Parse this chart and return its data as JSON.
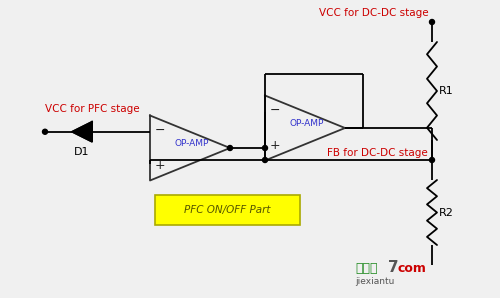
{
  "bg_color": "#f0f0f0",
  "vcc_pfc_label": "VCC for PFC stage",
  "vcc_dc_label": "VCC for DC-DC stage",
  "fb_label": "FB for DC-DC stage",
  "d1_label": "D1",
  "r1_label": "R1",
  "r2_label": "R2",
  "opamp1_label": "OP-AMP",
  "opamp2_label": "OP-AMP",
  "pfc_box_label": "PFC ON/OFF Part",
  "label_color_red": "#cc0000",
  "label_color_blue": "#3333cc",
  "line_color": "#000000",
  "pfc_box_fill": "#ffff00",
  "pfc_box_edge": "#aaaa00",
  "wm_green": "#228B22",
  "wm_red": "#cc0000",
  "wm_gray": "#555555",
  "wm_text1": "接线图",
  "wm_text2": "7",
  "wm_text3": "com",
  "wm_sub": "jiexiantu"
}
